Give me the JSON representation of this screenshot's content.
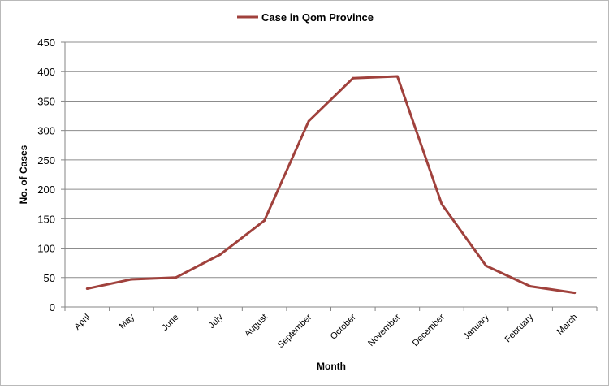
{
  "chart_data": {
    "type": "line",
    "title": "",
    "xlabel": "Month",
    "ylabel": "No. of Cases",
    "categories": [
      "April",
      "May",
      "June",
      "July",
      "August",
      "September",
      "October",
      "November",
      "December",
      "January",
      "February",
      "March"
    ],
    "series": [
      {
        "name": "Case in Qom Province",
        "color": "#a0413c",
        "values": [
          31,
          47,
          50,
          89,
          147,
          316,
          389,
          392,
          175,
          70,
          35,
          24
        ]
      }
    ],
    "yticks": [
      "0",
      "50",
      "100",
      "150",
      "200",
      "250",
      "300",
      "350",
      "400",
      "450"
    ],
    "ylim": [
      0,
      450
    ],
    "grid": "horizontal",
    "legend": "top-center"
  }
}
